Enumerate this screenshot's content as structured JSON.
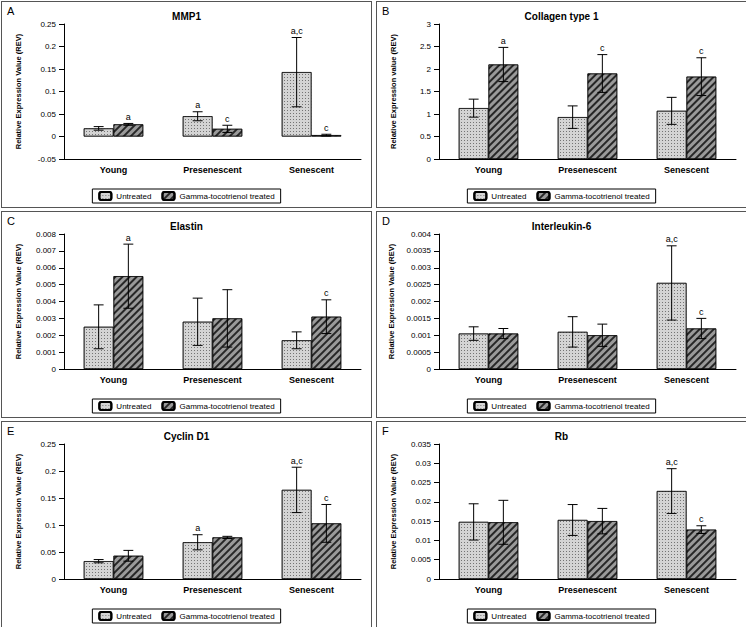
{
  "chart_data": [
    {
      "type": "bar",
      "panel": "A",
      "title": "MMP1",
      "ylabel": "Relative Expression Value (REV)",
      "categories": [
        "Young",
        "Presenescent",
        "Senescent"
      ],
      "series": [
        {
          "name": "Untreated",
          "color": "#d4d4d4",
          "values": [
            0.018,
            0.045,
            0.143
          ],
          "errors": [
            0.004,
            0.01,
            0.077
          ],
          "annotations": [
            null,
            "a",
            "a,c"
          ]
        },
        {
          "name": "Gamma-tocotrienol treated",
          "color": "#9a9a9a",
          "values": [
            0.027,
            0.017,
            0.003
          ],
          "errors": [
            0.002,
            0.008,
            0.002
          ],
          "annotations": [
            "a",
            "c",
            "c"
          ]
        }
      ],
      "ylim": [
        -0.05,
        0.25
      ],
      "yticks": [
        -0.05,
        0,
        0.05,
        0.1,
        0.15,
        0.2,
        0.25
      ],
      "grid": false,
      "legend": "bottom"
    },
    {
      "type": "bar",
      "panel": "B",
      "title": "Collagen type 1",
      "ylabel": "Relative Expression value (REV)",
      "categories": [
        "Young",
        "Presenescent",
        "Senescent"
      ],
      "series": [
        {
          "name": "Untreated",
          "color": "#d4d4d4",
          "values": [
            1.13,
            0.93,
            1.07
          ],
          "errors": [
            0.2,
            0.25,
            0.3
          ],
          "annotations": [
            null,
            null,
            null
          ]
        },
        {
          "name": "Gamma-tocotrienol treated",
          "color": "#9a9a9a",
          "values": [
            2.1,
            1.9,
            1.83
          ],
          "errors": [
            0.38,
            0.42,
            0.42
          ],
          "annotations": [
            "a",
            "c",
            "c"
          ]
        }
      ],
      "ylim": [
        0,
        3
      ],
      "yticks": [
        0,
        0.5,
        1,
        1.5,
        2,
        2.5,
        3
      ],
      "grid": false,
      "legend": "bottom"
    },
    {
      "type": "bar",
      "panel": "C",
      "title": "Elastin",
      "ylabel": "Relative Expression Value (REV)",
      "categories": [
        "Young",
        "Presenescent",
        "Senescent"
      ],
      "series": [
        {
          "name": "Untreated",
          "color": "#d4d4d4",
          "values": [
            0.0025,
            0.0028,
            0.0017
          ],
          "errors": [
            0.0013,
            0.0014,
            0.0005
          ],
          "annotations": [
            null,
            null,
            null
          ]
        },
        {
          "name": "Gamma-tocotrienol treated",
          "color": "#9a9a9a",
          "values": [
            0.0055,
            0.003,
            0.0031
          ],
          "errors": [
            0.0019,
            0.0017,
            0.001
          ],
          "annotations": [
            "a",
            null,
            "c"
          ]
        }
      ],
      "ylim": [
        0,
        0.008
      ],
      "yticks": [
        0,
        0.001,
        0.002,
        0.003,
        0.004,
        0.005,
        0.006,
        0.007,
        0.008
      ],
      "grid": false,
      "legend": "bottom"
    },
    {
      "type": "bar",
      "panel": "D",
      "title": "Interleukin-6",
      "ylabel": "Relative Expression Value (REV)",
      "categories": [
        "Young",
        "Presenescent",
        "Senescent"
      ],
      "series": [
        {
          "name": "Untreated",
          "color": "#d4d4d4",
          "values": [
            0.00105,
            0.0011,
            0.00255
          ],
          "errors": [
            0.0002,
            0.00045,
            0.0011
          ],
          "annotations": [
            null,
            null,
            "a,c"
          ]
        },
        {
          "name": "Gamma-tocotrienol treated",
          "color": "#9a9a9a",
          "values": [
            0.00105,
            0.001,
            0.0012
          ],
          "errors": [
            0.00015,
            0.00033,
            0.0003
          ],
          "annotations": [
            null,
            null,
            "c"
          ]
        }
      ],
      "ylim": [
        0,
        0.004
      ],
      "yticks": [
        0,
        0.0005,
        0.001,
        0.0015,
        0.002,
        0.0025,
        0.003,
        0.0035,
        0.004
      ],
      "grid": false,
      "legend": "bottom"
    },
    {
      "type": "bar",
      "panel": "E",
      "title": "Cyclin D1",
      "ylabel": "Relative Expression Value (REV)",
      "categories": [
        "Young",
        "Presenescent",
        "Senescent"
      ],
      "series": [
        {
          "name": "Untreated",
          "color": "#d4d4d4",
          "values": [
            0.033,
            0.068,
            0.165
          ],
          "errors": [
            0.003,
            0.014,
            0.042
          ],
          "annotations": [
            null,
            "a",
            "a,c"
          ]
        },
        {
          "name": "Gamma-tocotrienol treated",
          "color": "#9a9a9a",
          "values": [
            0.043,
            0.077,
            0.103
          ],
          "errors": [
            0.01,
            0.002,
            0.035
          ],
          "annotations": [
            null,
            null,
            "c"
          ]
        }
      ],
      "ylim": [
        0,
        0.25
      ],
      "yticks": [
        0,
        0.05,
        0.1,
        0.15,
        0.2,
        0.25
      ],
      "grid": false,
      "legend": "bottom"
    },
    {
      "type": "bar",
      "panel": "F",
      "title": "Rb",
      "ylabel": "Relative Expression Value (REV)",
      "categories": [
        "Young",
        "Presenescent",
        "Senescent"
      ],
      "series": [
        {
          "name": "Untreated",
          "color": "#d4d4d4",
          "values": [
            0.0148,
            0.0153,
            0.0228
          ],
          "errors": [
            0.0047,
            0.004,
            0.0058
          ],
          "annotations": [
            null,
            null,
            "a,c"
          ]
        },
        {
          "name": "Gamma-tocotrienol treated",
          "color": "#9a9a9a",
          "values": [
            0.0147,
            0.015,
            0.0128
          ],
          "errors": [
            0.0057,
            0.0033,
            0.001
          ],
          "annotations": [
            null,
            null,
            "c"
          ]
        }
      ],
      "ylim": [
        0,
        0.035
      ],
      "yticks": [
        0,
        0.005,
        0.01,
        0.015,
        0.02,
        0.025,
        0.03,
        0.035
      ],
      "grid": false,
      "legend": "bottom"
    }
  ]
}
